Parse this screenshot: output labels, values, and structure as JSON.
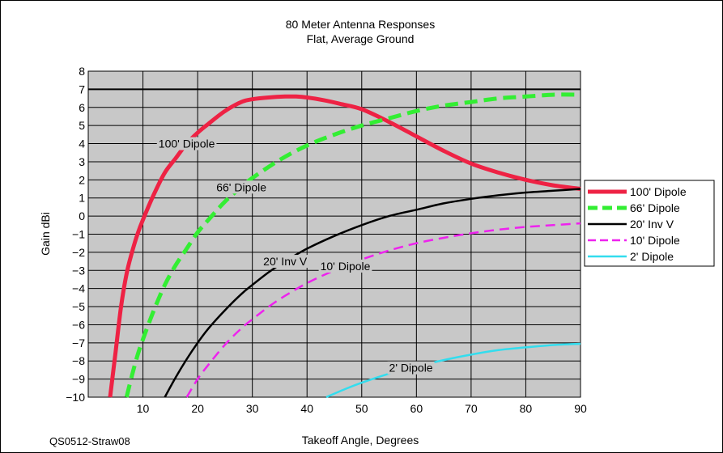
{
  "chart_data": {
    "type": "line",
    "title": "80 Meter Antenna Responses",
    "subtitle": "Flat, Average Ground",
    "xlabel": "Takeoff Angle, Degrees",
    "ylabel": "Gain dBi",
    "xlim": [
      0,
      90
    ],
    "ylim": [
      -10,
      8
    ],
    "xticks": [
      0,
      10,
      20,
      30,
      40,
      50,
      60,
      70,
      80,
      90
    ],
    "xtick_labels": [
      "",
      "10",
      "20",
      "30",
      "40",
      "50",
      "60",
      "70",
      "80",
      "90"
    ],
    "yticks": [
      -10,
      -9,
      -8,
      -7,
      -6,
      -5,
      -4,
      -3,
      -2,
      -1,
      0,
      1,
      2,
      3,
      4,
      5,
      6,
      7,
      8
    ],
    "ytick_labels": [
      "−10",
      "−9",
      "−8",
      "−7",
      "−6",
      "−5",
      "−4",
      "−3",
      "−2",
      "−1",
      "0",
      "1",
      "2",
      "3",
      "4",
      "5",
      "6",
      "7",
      "8"
    ],
    "grid": true,
    "legend_position": "right",
    "reference_line_y": 7,
    "series": [
      {
        "name": "100' Dipole",
        "color": "#ee2244",
        "dash": "solid",
        "width": 5,
        "x": [
          4,
          5,
          6,
          7,
          8,
          9,
          10,
          12,
          14,
          16,
          18,
          20,
          22,
          25,
          28,
          30,
          33,
          36,
          38,
          40,
          43,
          46,
          50,
          55,
          60,
          65,
          70,
          75,
          80,
          85,
          90
        ],
        "y": [
          -10,
          -7.5,
          -5,
          -3.2,
          -2,
          -1,
          -0.2,
          1.2,
          2.4,
          3.2,
          4.0,
          4.6,
          5.1,
          5.8,
          6.3,
          6.45,
          6.55,
          6.6,
          6.6,
          6.55,
          6.4,
          6.2,
          5.9,
          5.2,
          4.4,
          3.6,
          2.9,
          2.4,
          2.0,
          1.7,
          1.5
        ]
      },
      {
        "name": "66' Dipole",
        "color": "#33ee33",
        "dash": "dashed",
        "width": 5,
        "x": [
          7,
          8,
          9,
          10,
          12,
          14,
          16,
          18,
          20,
          22,
          25,
          28,
          30,
          35,
          40,
          45,
          50,
          55,
          60,
          65,
          70,
          75,
          80,
          85,
          90
        ],
        "y": [
          -10,
          -8.8,
          -7.7,
          -6.8,
          -5.2,
          -3.8,
          -2.7,
          -1.8,
          -0.9,
          -0.2,
          0.8,
          1.6,
          2.1,
          3.1,
          3.9,
          4.5,
          5.0,
          5.4,
          5.8,
          6.1,
          6.3,
          6.5,
          6.6,
          6.7,
          6.7
        ]
      },
      {
        "name": "20' Inv V",
        "color": "#000000",
        "dash": "solid",
        "width": 2.5,
        "x": [
          14,
          16,
          18,
          20,
          22,
          25,
          28,
          30,
          33,
          36,
          40,
          45,
          50,
          55,
          60,
          65,
          70,
          75,
          80,
          85,
          90
        ],
        "y": [
          -10,
          -8.9,
          -7.9,
          -7.0,
          -6.2,
          -5.2,
          -4.3,
          -3.8,
          -3.1,
          -2.5,
          -1.8,
          -1.1,
          -0.5,
          0.0,
          0.35,
          0.7,
          0.95,
          1.15,
          1.3,
          1.4,
          1.5
        ]
      },
      {
        "name": "10' Dipole",
        "color": "#ee22ee",
        "dash": "dashed",
        "width": 2.5,
        "x": [
          18,
          20,
          22,
          25,
          28,
          30,
          33,
          36,
          40,
          45,
          50,
          55,
          60,
          65,
          70,
          75,
          80,
          85,
          90
        ],
        "y": [
          -10,
          -9.0,
          -8.2,
          -7.1,
          -6.2,
          -5.7,
          -5.0,
          -4.4,
          -3.7,
          -3.0,
          -2.4,
          -1.9,
          -1.5,
          -1.2,
          -0.95,
          -0.75,
          -0.6,
          -0.5,
          -0.4
        ]
      },
      {
        "name": "2' Dipole",
        "color": "#33ddee",
        "dash": "solid",
        "width": 2.5,
        "x": [
          43.5,
          47,
          50,
          55,
          60,
          65,
          70,
          75,
          80,
          85,
          90
        ],
        "y": [
          -10,
          -9.55,
          -9.2,
          -8.7,
          -8.3,
          -7.95,
          -7.65,
          -7.4,
          -7.25,
          -7.12,
          -7.05
        ]
      }
    ],
    "annotations": [
      {
        "text": "100' Dipole",
        "series": 0,
        "x": 18
      },
      {
        "text": "66' Dipole",
        "series": 1,
        "x": 28
      },
      {
        "text": "20' Inv V",
        "series": 2,
        "x": 36
      },
      {
        "text": "10' Dipole",
        "series": 3,
        "x": 47
      },
      {
        "text": "2' Dipole",
        "series": 4,
        "x": 59
      }
    ],
    "credit": "QS0512-Straw08"
  }
}
